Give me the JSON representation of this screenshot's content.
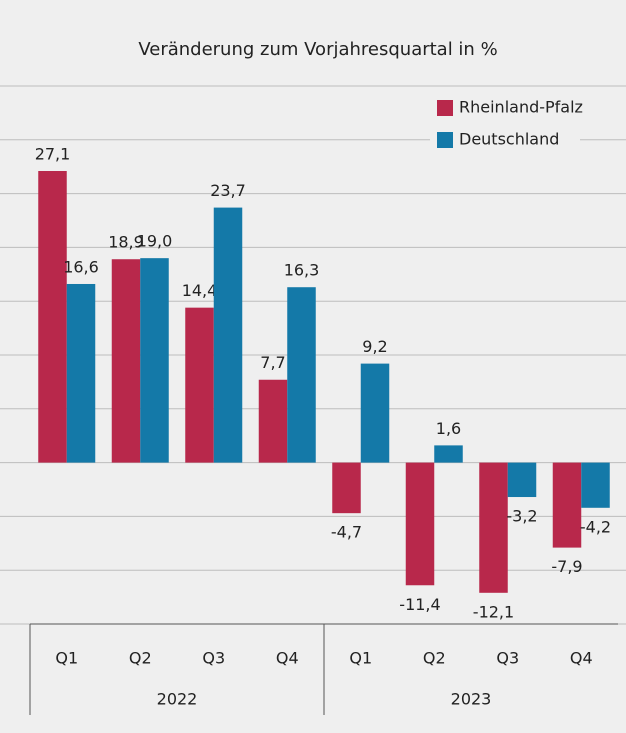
{
  "chart_data": {
    "type": "bar",
    "title": "Veränderung zum Vorjahresquartal in %",
    "categories": [
      "Q1",
      "Q2",
      "Q3",
      "Q4",
      "Q1",
      "Q2",
      "Q3",
      "Q4"
    ],
    "groups": [
      {
        "label": "2022",
        "span": 4
      },
      {
        "label": "2023",
        "span": 4
      }
    ],
    "series": [
      {
        "name": "Rheinland-Pfalz",
        "color": "#b8284b",
        "values": [
          27.1,
          18.9,
          14.4,
          7.7,
          -4.7,
          -11.4,
          -12.1,
          -7.9
        ],
        "value_labels": [
          "27,1",
          "18,9",
          "14,4",
          "7,7",
          "-4,7",
          "-11,4",
          "-12,1",
          "-7,9"
        ]
      },
      {
        "name": "Deutschland",
        "color": "#1479a8",
        "values": [
          16.6,
          19.0,
          23.7,
          16.3,
          9.2,
          1.6,
          -3.2,
          -4.2
        ],
        "value_labels": [
          "16,6",
          "19,0",
          "23,7",
          "16,3",
          "9,2",
          "1,6",
          "-3,2",
          "-4,2"
        ]
      }
    ],
    "ylim": [
      -15,
      35
    ],
    "yticks": [
      -15,
      -10,
      -5,
      0,
      5,
      10,
      15,
      20,
      25,
      30,
      35
    ],
    "grid": true,
    "legend": "top-right"
  }
}
